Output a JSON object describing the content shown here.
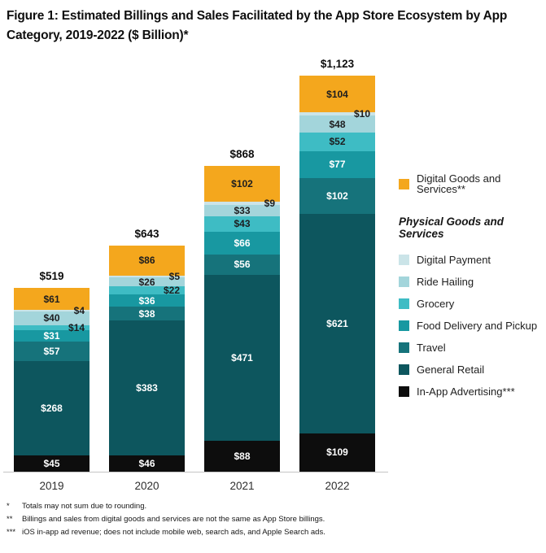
{
  "title": {
    "line1": "Figure 1: Estimated Billings and Sales Facilitated by the App Store Ecosystem by App",
    "line2": "Category, 2019-2022 ($ Billion)*"
  },
  "chart_data": {
    "type": "bar",
    "subtype": "stacked-bar",
    "unit": "$ Billion",
    "title": "Estimated Billings and Sales Facilitated by the App Store Ecosystem by App Category, 2019-2022 ($ Billion)",
    "categories": [
      "2019",
      "2020",
      "2021",
      "2022"
    ],
    "totals": [
      519,
      643,
      868,
      1123
    ],
    "total_labels": [
      "$519",
      "$643",
      "$868",
      "$1,123"
    ],
    "value_label_prefix": "$",
    "ylim": [
      0,
      1123
    ],
    "grid": false,
    "legend_position": "right",
    "series_top_to_bottom": [
      {
        "name": "Digital Goods and Services",
        "color": "#F4A71D",
        "values": [
          61,
          86,
          102,
          104
        ],
        "label_style": "dark",
        "label_placement": [
          "center",
          "center",
          "center",
          "center"
        ]
      },
      {
        "name": "Digital Payment",
        "color": "#CBE4E8",
        "values": [
          4,
          5,
          9,
          10
        ],
        "label_style": "dark",
        "label_placement": [
          "right",
          "right",
          "right",
          "right"
        ]
      },
      {
        "name": "Ride Hailing",
        "color": "#A3D5DB",
        "values": [
          40,
          26,
          33,
          48
        ],
        "label_style": "dark",
        "label_placement": [
          "center",
          "center",
          "center",
          "center"
        ]
      },
      {
        "name": "Grocery",
        "color": "#3EBCC4",
        "values": [
          14,
          22,
          43,
          52
        ],
        "label_style": "dark",
        "label_placement": [
          "right",
          "right",
          "center",
          "center"
        ]
      },
      {
        "name": "Food Delivery and Pickup",
        "color": "#1898A1",
        "values": [
          31,
          36,
          66,
          77
        ],
        "label_style": "light",
        "label_placement": [
          "center",
          "center",
          "center",
          "center"
        ]
      },
      {
        "name": "Travel",
        "color": "#16737B",
        "values": [
          57,
          38,
          56,
          102
        ],
        "label_style": "light",
        "label_placement": [
          "center",
          "center",
          "center",
          "center"
        ]
      },
      {
        "name": "General Retail",
        "color": "#0D565E",
        "values": [
          268,
          383,
          471,
          621
        ],
        "label_style": "light",
        "label_placement": [
          "center",
          "center",
          "center",
          "center"
        ]
      },
      {
        "name": "In-App Advertising",
        "color": "#0D0D0D",
        "values": [
          45,
          46,
          88,
          109
        ],
        "label_style": "light",
        "label_placement": [
          "center",
          "center",
          "center",
          "center"
        ]
      }
    ]
  },
  "legend": {
    "digital_goods": {
      "label": "Digital Goods and Services**",
      "color": "#F4A71D"
    },
    "physical_heading": "Physical Goods and Services",
    "physical_items": [
      {
        "label": "Digital Payment",
        "color": "#CBE4E8"
      },
      {
        "label": "Ride Hailing",
        "color": "#A3D5DB"
      },
      {
        "label": "Grocery",
        "color": "#3EBCC4"
      },
      {
        "label": "Food Delivery and Pickup",
        "color": "#1898A1"
      },
      {
        "label": "Travel",
        "color": "#16737B"
      },
      {
        "label": "General Retail",
        "color": "#0D565E"
      }
    ],
    "in_app": {
      "label": "In-App Advertising***",
      "color": "#0D0D0D"
    }
  },
  "footnotes": [
    {
      "marker": "*",
      "text": "Totals may not sum due to rounding."
    },
    {
      "marker": "**",
      "text": "Billings and sales from digital goods and services are not the same as App Store billings."
    },
    {
      "marker": "***",
      "text": "iOS in-app ad revenue; does not include mobile web, search ads, and Apple Search ads."
    }
  ]
}
